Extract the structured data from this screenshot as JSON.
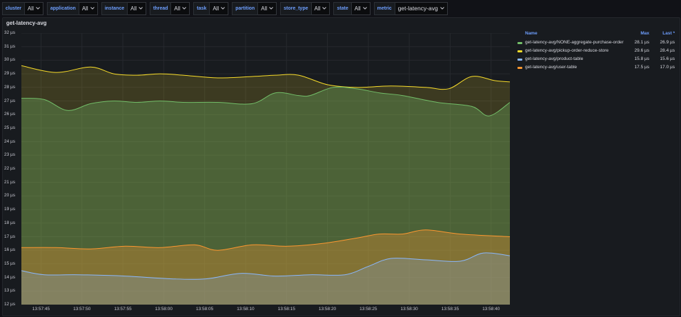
{
  "toolbar": {
    "variables": [
      {
        "label": "cluster",
        "value": "All"
      },
      {
        "label": "application",
        "value": "All"
      },
      {
        "label": "instance",
        "value": "All"
      },
      {
        "label": "thread",
        "value": "All"
      },
      {
        "label": "task",
        "value": "All"
      },
      {
        "label": "partition",
        "value": "All"
      },
      {
        "label": "store_type",
        "value": "All"
      },
      {
        "label": "state",
        "value": "All"
      },
      {
        "label": "metric",
        "value": "get-latency-avg"
      }
    ]
  },
  "panel": {
    "title": "get-latency-avg"
  },
  "legend": {
    "col_name": "Name",
    "col_max": "Max",
    "col_last": "Last *",
    "rows": [
      {
        "name": "get-latency-avg/NONE-aggregate-purchase-order",
        "max": "28.1 µs",
        "last": "26.9 µs",
        "color": "#73bf69"
      },
      {
        "name": "get-latency-avg/pickup-order-reduce-store",
        "max": "29.6 µs",
        "last": "28.4 µs",
        "color": "#fade2a"
      },
      {
        "name": "get-latency-avg/product-table",
        "max": "15.8 µs",
        "last": "15.6 µs",
        "color": "#8ab8ff"
      },
      {
        "name": "get-latency-avg/user-table",
        "max": "17.5 µs",
        "last": "17.0 µs",
        "color": "#ff9830"
      }
    ]
  },
  "chart_data": {
    "type": "area",
    "title": "get-latency-avg",
    "y_unit": "µs",
    "ylim": [
      12,
      32
    ],
    "yticks": [
      "32 µs",
      "31 µs",
      "30 µs",
      "29 µs",
      "28 µs",
      "27 µs",
      "26 µs",
      "25 µs",
      "24 µs",
      "23 µs",
      "22 µs",
      "21 µs",
      "20 µs",
      "19 µs",
      "18 µs",
      "17 µs",
      "16 µs",
      "15 µs",
      "14 µs",
      "13 µs",
      "12 µs"
    ],
    "xticks": [
      "13:57:45",
      "13:57:50",
      "13:57:55",
      "13:58:00",
      "13:58:05",
      "13:58:10",
      "13:58:15",
      "13:58:20",
      "13:58:25",
      "13:58:30",
      "13:58:35",
      "13:58:40"
    ],
    "x_range_seconds": [
      -1.7,
      40.6
    ],
    "grid": true,
    "series": [
      {
        "name": "get-latency-avg/pickup-order-reduce-store",
        "color": "#fade2a",
        "x": [
          -1.7,
          1.3,
          4.3,
          6.3,
          8.3,
          10.3,
          12.3,
          15.3,
          18.3,
          20.3,
          22.3,
          24.8,
          27.3,
          30.3,
          33.3,
          35.3,
          37.3,
          39.3,
          40.6
        ],
        "y": [
          29.6,
          29.1,
          29.5,
          29.0,
          28.9,
          29.0,
          28.9,
          28.7,
          28.8,
          28.9,
          28.9,
          28.2,
          28.0,
          28.1,
          28.0,
          27.9,
          28.8,
          28.5,
          28.4
        ]
      },
      {
        "name": "get-latency-avg/NONE-aggregate-purchase-order",
        "color": "#73bf69",
        "x": [
          -1.7,
          0.3,
          2.3,
          4.3,
          6.3,
          8.3,
          10.3,
          12.3,
          15.3,
          18.3,
          20.3,
          22.3,
          23.3,
          25.3,
          27.3,
          29.3,
          31.3,
          34.3,
          37.3,
          38.8,
          40.6
        ],
        "y": [
          27.2,
          27.1,
          26.3,
          26.8,
          27.0,
          26.9,
          27.0,
          26.9,
          26.9,
          26.8,
          27.6,
          27.4,
          27.4,
          28.0,
          27.9,
          27.6,
          27.4,
          26.9,
          26.6,
          25.9,
          26.9
        ]
      },
      {
        "name": "get-latency-avg/user-table",
        "color": "#ff9830",
        "x": [
          -1.7,
          1.3,
          4.3,
          7.3,
          10.3,
          13.3,
          15.3,
          18.3,
          21.3,
          24.3,
          27.3,
          29.3,
          31.3,
          33.3,
          36.3,
          40.6
        ],
        "y": [
          16.2,
          16.2,
          16.1,
          16.3,
          16.2,
          16.4,
          16.0,
          16.4,
          16.3,
          16.5,
          16.9,
          17.2,
          17.2,
          17.5,
          17.2,
          17.0
        ]
      },
      {
        "name": "get-latency-avg/product-table",
        "color": "#8ab8ff",
        "x": [
          -1.7,
          0.3,
          3.3,
          7.3,
          11.3,
          14.3,
          17.3,
          20.3,
          23.3,
          26.3,
          28.3,
          30.3,
          33.3,
          36.3,
          38.3,
          40.6
        ],
        "y": [
          14.5,
          14.2,
          14.2,
          14.1,
          13.9,
          13.9,
          14.3,
          14.1,
          14.2,
          14.2,
          14.8,
          15.4,
          15.3,
          15.2,
          15.8,
          15.6
        ]
      }
    ]
  }
}
